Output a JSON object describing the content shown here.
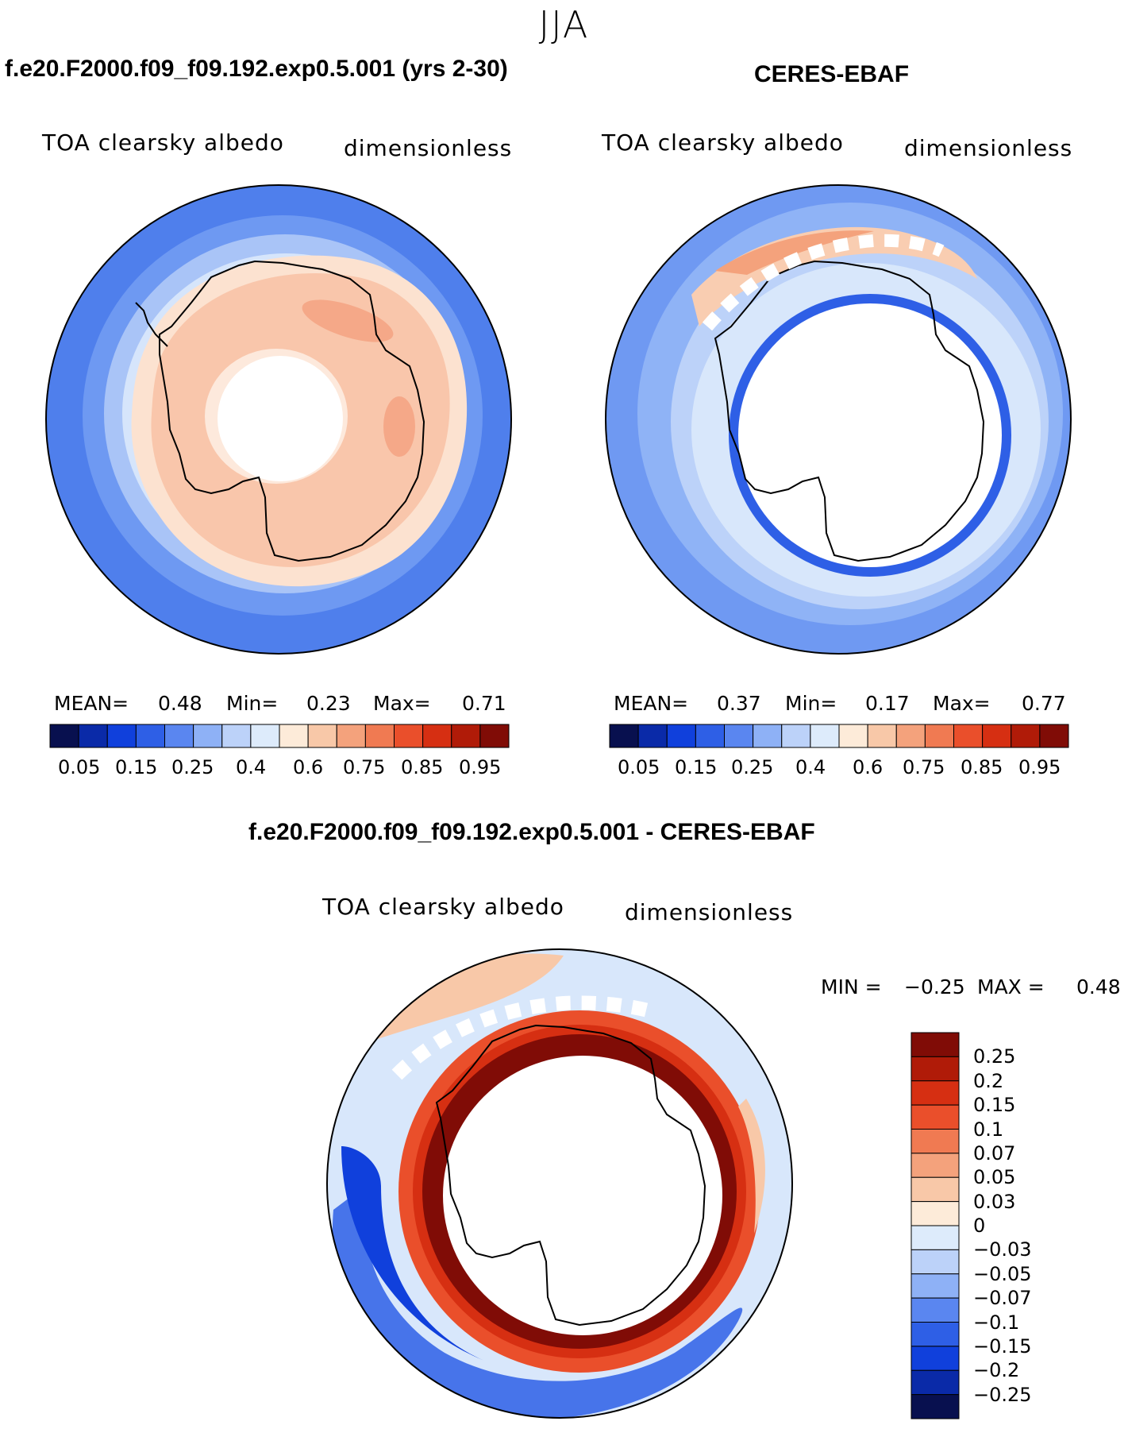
{
  "season": "JJA",
  "colors": {
    "scale_abs": [
      "#08104f",
      "#0a2aa8",
      "#1040dc",
      "#2e5fe6",
      "#5a86f0",
      "#8eb1f6",
      "#bcd2f9",
      "#ddebfb",
      "#fdebd9",
      "#f8c8a8",
      "#f4a27c",
      "#f07a52",
      "#ea4f2b",
      "#d62f12",
      "#b01b08",
      "#800c06"
    ],
    "scale_diff": [
      "#800c06",
      "#b01b08",
      "#d62f12",
      "#ea4f2b",
      "#f07a52",
      "#f4a27c",
      "#f8c8a8",
      "#fdebd9",
      "#ddebfb",
      "#bcd2f9",
      "#8eb1f6",
      "#5a86f0",
      "#2e5fe6",
      "#1040dc",
      "#0a2aa8",
      "#08104f"
    ]
  },
  "panels": [
    {
      "title": "f.e20.F2000.f09_f09.192.exp0.5.001 (yrs 2-30)",
      "variable": "TOA clearsky albedo",
      "units": "dimensionless",
      "mean_label": "MEAN=",
      "mean": "0.48",
      "min_label": "Min=",
      "min": "0.23",
      "max_label": "Max=",
      "max": "0.71",
      "ticks": [
        "0.05",
        "0.15",
        "0.25",
        "0.4",
        "0.6",
        "0.75",
        "0.85",
        "0.95"
      ]
    },
    {
      "title": "CERES-EBAF",
      "variable": "TOA clearsky albedo",
      "units": "dimensionless",
      "mean_label": "MEAN=",
      "mean": "0.37",
      "min_label": "Min=",
      "min": "0.17",
      "max_label": "Max=",
      "max": "0.77",
      "ticks": [
        "0.05",
        "0.15",
        "0.25",
        "0.4",
        "0.6",
        "0.75",
        "0.85",
        "0.95"
      ]
    }
  ],
  "diff": {
    "title": "f.e20.F2000.f09_f09.192.exp0.5.001 - CERES-EBAF",
    "variable": "TOA clearsky albedo",
    "units": "dimensionless",
    "min_label": "MIN =",
    "min": "−0.25",
    "max_label": "MAX =",
    "max": "0.48",
    "levels": [
      "0.25",
      "0.2",
      "0.15",
      "0.1",
      "0.07",
      "0.05",
      "0.03",
      "0",
      "−0.03",
      "−0.05",
      "−0.07",
      "−0.1",
      "−0.15",
      "−0.2",
      "−0.25"
    ]
  }
}
